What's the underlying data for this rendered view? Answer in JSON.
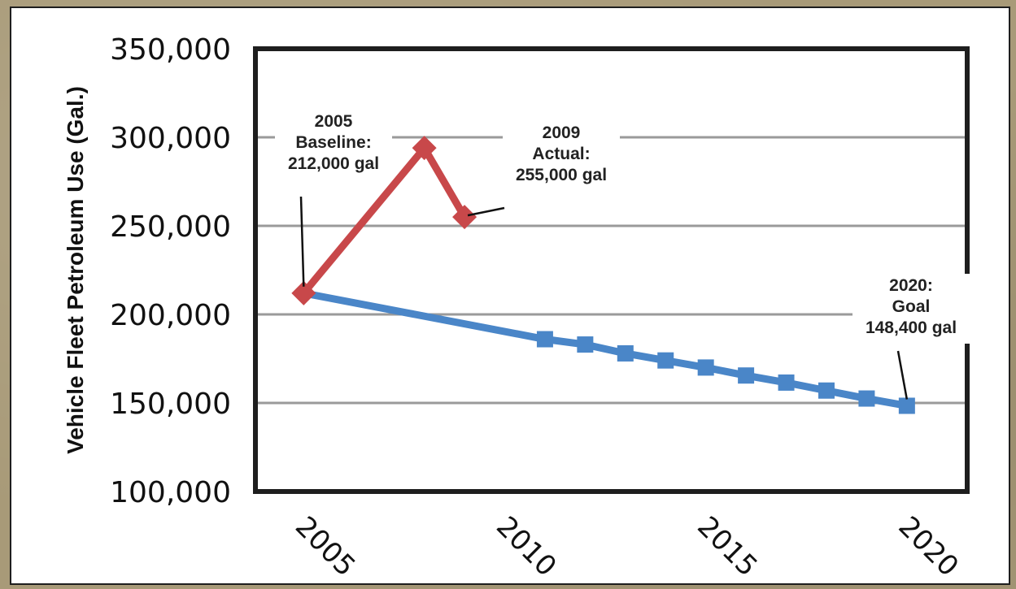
{
  "chart_data": {
    "type": "line",
    "ylabel": "Vehicle Fleet Petroleum Use (Gal.)",
    "xlabel": "",
    "xlim": [
      2003.8,
      2021.5
    ],
    "ylim": [
      100000,
      350000
    ],
    "y_ticks": [
      {
        "value": 100000,
        "label": "100,000"
      },
      {
        "value": 150000,
        "label": "150,000"
      },
      {
        "value": 200000,
        "label": "200,000"
      },
      {
        "value": 250000,
        "label": "250,000"
      },
      {
        "value": 300000,
        "label": "300,000"
      },
      {
        "value": 350000,
        "label": "350,000"
      }
    ],
    "x_ticks": [
      {
        "value": 2005,
        "label": "2005"
      },
      {
        "value": 2010,
        "label": "2010"
      },
      {
        "value": 2015,
        "label": "2015"
      },
      {
        "value": 2020,
        "label": "2020"
      }
    ],
    "grid": "horizontal",
    "series": [
      {
        "key": "actual",
        "color": "#c8484a",
        "marker": "diamond",
        "x": [
          2005,
          2008,
          2009
        ],
        "y": [
          212000,
          294000,
          255000
        ]
      },
      {
        "key": "goal",
        "color": "#4a86c8",
        "marker": "square",
        "x": [
          2005,
          2011,
          2012,
          2013,
          2014,
          2015,
          2016,
          2017,
          2018,
          2019,
          2020
        ],
        "y": [
          212000,
          186000,
          183000,
          178000,
          174000,
          170000,
          165500,
          161500,
          157000,
          152500,
          148400
        ],
        "markers_from_index": 1
      }
    ],
    "annotations": [
      {
        "lines": [
          "2005",
          "Baseline:",
          "212,000 gal"
        ],
        "point": [
          2005,
          212000
        ]
      },
      {
        "lines": [
          "2009",
          "Actual:",
          "255,000 gal"
        ],
        "point": [
          2009,
          255000
        ]
      },
      {
        "lines": [
          "2020:",
          "Goal",
          "148,400 gal"
        ],
        "point": [
          2020,
          148400
        ]
      }
    ]
  }
}
